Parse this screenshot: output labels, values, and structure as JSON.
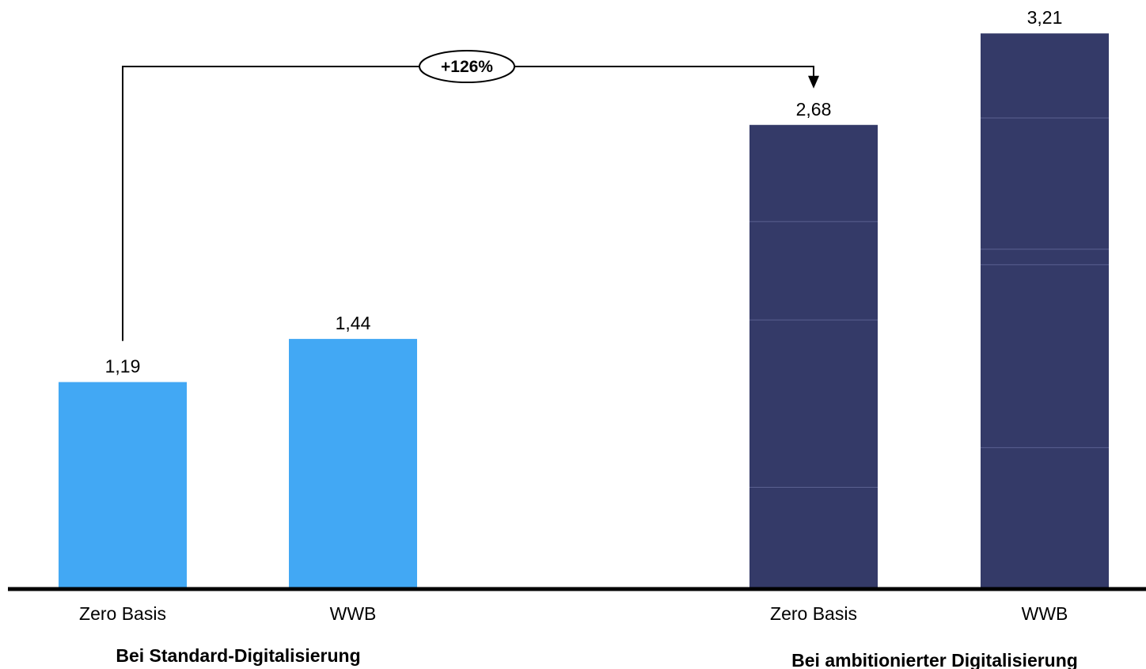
{
  "chart_data": {
    "type": "bar",
    "groups": [
      {
        "label": "Bei Standard-Digitalisierung",
        "color": "#42A8F4"
      },
      {
        "label": "Bei ambitionierter Digitalisierung",
        "color": "#343A68"
      }
    ],
    "bars": [
      {
        "group": 0,
        "category": "Zero Basis",
        "value": 1.19,
        "value_label": "1,19",
        "segments": [
          1.19
        ]
      },
      {
        "group": 0,
        "category": "WWB",
        "value": 1.44,
        "value_label": "1,44",
        "segments": [
          1.44
        ]
      },
      {
        "group": 1,
        "category": "Zero Basis",
        "value": 2.68,
        "value_label": "2,68",
        "segments": [
          0.58,
          0.97,
          0.57,
          0.56
        ]
      },
      {
        "group": 1,
        "category": "WWB",
        "value": 3.21,
        "value_label": "3,21",
        "segments": [
          0.81,
          1.06,
          0.09,
          0.76,
          0.49
        ]
      }
    ],
    "ylim": [
      0,
      3.3
    ],
    "grid": false,
    "annotation": {
      "label": "+126%",
      "from_bar": 0,
      "to_bar": 2
    }
  }
}
